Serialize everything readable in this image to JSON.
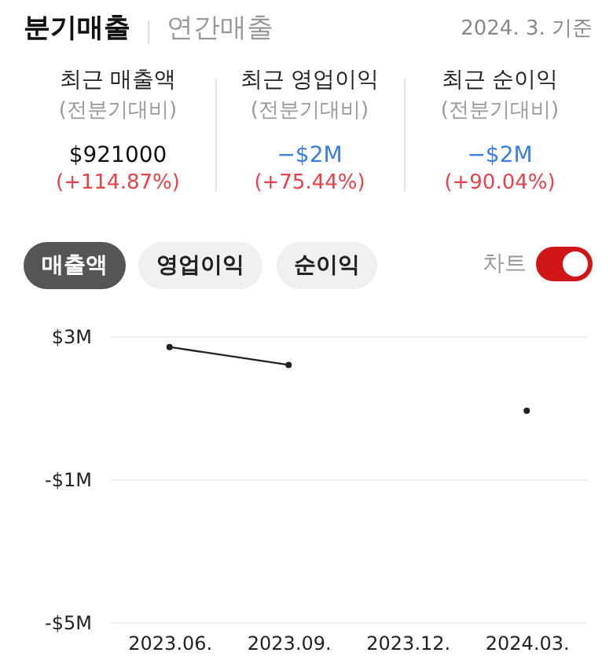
{
  "chart_data": [
    {
      "type": "other",
      "annotations": [
        "분기매출",
        "연간매출",
        "2024. 3. 기준",
        "최근 매출액",
        "최근 영업이익",
        "최근 순이익",
        "(전분기대비)",
        "(전분기대비)",
        "(전분기대비)",
        "$921000",
        "−$2M",
        "−$2M",
        "(+114.87%)",
        "(+75.44%)",
        "(+90.04%)",
        "매출액",
        "영업이익",
        "순이익",
        "차트"
      ]
    },
    {
      "type": "line",
      "categories": [
        "2023.06.",
        "2023.09.",
        "2023.12.",
        "2024.03."
      ],
      "series": [
        {
          "color": "#222222",
          "values": [
            2.7,
            2.2,
            null,
            0.92
          ]
        }
      ],
      "ylim": [
        -5,
        3
      ],
      "yticks": [
        {
          "value": 3,
          "label": "$3M"
        },
        {
          "value": -1,
          "label": "-$1M"
        },
        {
          "value": -5,
          "label": "-$5M"
        }
      ],
      "grid": "y",
      "marker": "circle",
      "line_style": "solid"
    }
  ]
}
